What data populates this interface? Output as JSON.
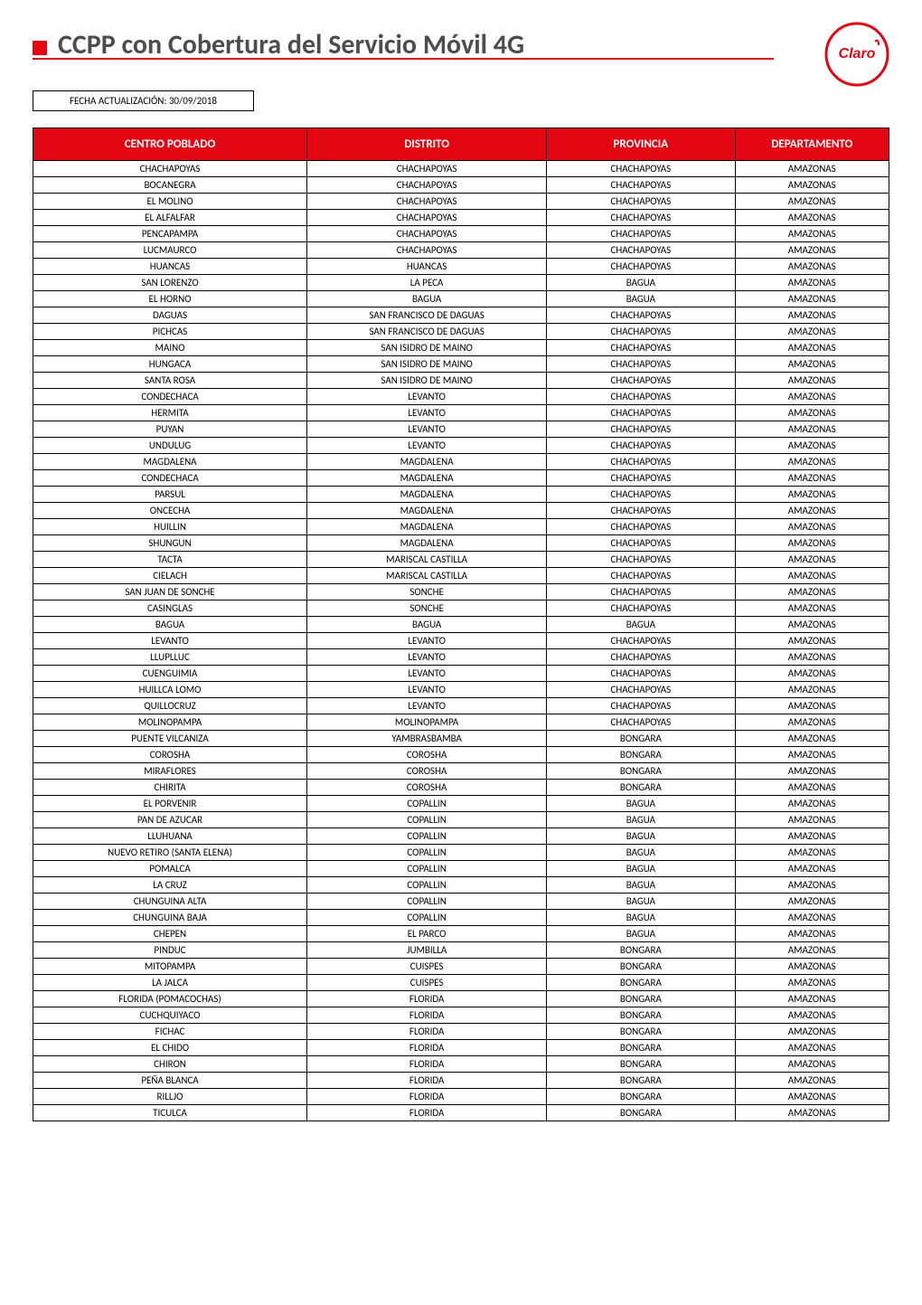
{
  "title": "CCPP con Cobertura del Servicio Móvil 4G",
  "fecha": "FECHA ACTUALIZACIÓN: 30/09/2018",
  "logo": {
    "bg": "#ffffff",
    "border": "#e30613",
    "text": "Claro",
    "text_color": "#e30613"
  },
  "table": {
    "columns": [
      "CENTRO POBLADO",
      "DISTRITO",
      "PROVINCIA",
      "DEPARTAMENTO"
    ],
    "rows": [
      [
        "CHACHAPOYAS",
        "CHACHAPOYAS",
        "CHACHAPOYAS",
        "AMAZONAS"
      ],
      [
        "BOCANEGRA",
        "CHACHAPOYAS",
        "CHACHAPOYAS",
        "AMAZONAS"
      ],
      [
        "EL MOLINO",
        "CHACHAPOYAS",
        "CHACHAPOYAS",
        "AMAZONAS"
      ],
      [
        "EL ALFALFAR",
        "CHACHAPOYAS",
        "CHACHAPOYAS",
        "AMAZONAS"
      ],
      [
        "PENCAPAMPA",
        "CHACHAPOYAS",
        "CHACHAPOYAS",
        "AMAZONAS"
      ],
      [
        "LUCMAURCO",
        "CHACHAPOYAS",
        "CHACHAPOYAS",
        "AMAZONAS"
      ],
      [
        "HUANCAS",
        "HUANCAS",
        "CHACHAPOYAS",
        "AMAZONAS"
      ],
      [
        "SAN LORENZO",
        "LA PECA",
        "BAGUA",
        "AMAZONAS"
      ],
      [
        "EL HORNO",
        "BAGUA",
        "BAGUA",
        "AMAZONAS"
      ],
      [
        "DAGUAS",
        "SAN FRANCISCO DE DAGUAS",
        "CHACHAPOYAS",
        "AMAZONAS"
      ],
      [
        "PICHCAS",
        "SAN FRANCISCO DE DAGUAS",
        "CHACHAPOYAS",
        "AMAZONAS"
      ],
      [
        "MAINO",
        "SAN ISIDRO DE MAINO",
        "CHACHAPOYAS",
        "AMAZONAS"
      ],
      [
        "HUNGACA",
        "SAN ISIDRO DE MAINO",
        "CHACHAPOYAS",
        "AMAZONAS"
      ],
      [
        "SANTA ROSA",
        "SAN ISIDRO DE MAINO",
        "CHACHAPOYAS",
        "AMAZONAS"
      ],
      [
        "CONDECHACA",
        "LEVANTO",
        "CHACHAPOYAS",
        "AMAZONAS"
      ],
      [
        "HERMITA",
        "LEVANTO",
        "CHACHAPOYAS",
        "AMAZONAS"
      ],
      [
        "PUYAN",
        "LEVANTO",
        "CHACHAPOYAS",
        "AMAZONAS"
      ],
      [
        "UNDULUG",
        "LEVANTO",
        "CHACHAPOYAS",
        "AMAZONAS"
      ],
      [
        "MAGDALENA",
        "MAGDALENA",
        "CHACHAPOYAS",
        "AMAZONAS"
      ],
      [
        "CONDECHACA",
        "MAGDALENA",
        "CHACHAPOYAS",
        "AMAZONAS"
      ],
      [
        "PARSUL",
        "MAGDALENA",
        "CHACHAPOYAS",
        "AMAZONAS"
      ],
      [
        "ONCECHA",
        "MAGDALENA",
        "CHACHAPOYAS",
        "AMAZONAS"
      ],
      [
        "HUILLIN",
        "MAGDALENA",
        "CHACHAPOYAS",
        "AMAZONAS"
      ],
      [
        "SHUNGUN",
        "MAGDALENA",
        "CHACHAPOYAS",
        "AMAZONAS"
      ],
      [
        "TACTA",
        "MARISCAL CASTILLA",
        "CHACHAPOYAS",
        "AMAZONAS"
      ],
      [
        "CIELACH",
        "MARISCAL CASTILLA",
        "CHACHAPOYAS",
        "AMAZONAS"
      ],
      [
        "SAN JUAN DE SONCHE",
        "SONCHE",
        "CHACHAPOYAS",
        "AMAZONAS"
      ],
      [
        "CASINGLAS",
        "SONCHE",
        "CHACHAPOYAS",
        "AMAZONAS"
      ],
      [
        "BAGUA",
        "BAGUA",
        "BAGUA",
        "AMAZONAS"
      ],
      [
        "LEVANTO",
        "LEVANTO",
        "CHACHAPOYAS",
        "AMAZONAS"
      ],
      [
        "LLUPLLUC",
        "LEVANTO",
        "CHACHAPOYAS",
        "AMAZONAS"
      ],
      [
        "CUENGUIMIA",
        "LEVANTO",
        "CHACHAPOYAS",
        "AMAZONAS"
      ],
      [
        "HUILLCA LOMO",
        "LEVANTO",
        "CHACHAPOYAS",
        "AMAZONAS"
      ],
      [
        "QUILLOCRUZ",
        "LEVANTO",
        "CHACHAPOYAS",
        "AMAZONAS"
      ],
      [
        "MOLINOPAMPA",
        "MOLINOPAMPA",
        "CHACHAPOYAS",
        "AMAZONAS"
      ],
      [
        "PUENTE VILCANIZA",
        "YAMBRASBAMBA",
        "BONGARA",
        "AMAZONAS"
      ],
      [
        "COROSHA",
        "COROSHA",
        "BONGARA",
        "AMAZONAS"
      ],
      [
        "MIRAFLORES",
        "COROSHA",
        "BONGARA",
        "AMAZONAS"
      ],
      [
        "CHIRITA",
        "COROSHA",
        "BONGARA",
        "AMAZONAS"
      ],
      [
        "EL PORVENIR",
        "COPALLIN",
        "BAGUA",
        "AMAZONAS"
      ],
      [
        "PAN DE AZUCAR",
        "COPALLIN",
        "BAGUA",
        "AMAZONAS"
      ],
      [
        "LLUHUANA",
        "COPALLIN",
        "BAGUA",
        "AMAZONAS"
      ],
      [
        "NUEVO RETIRO (SANTA ELENA)",
        "COPALLIN",
        "BAGUA",
        "AMAZONAS"
      ],
      [
        "POMALCA",
        "COPALLIN",
        "BAGUA",
        "AMAZONAS"
      ],
      [
        "LA CRUZ",
        "COPALLIN",
        "BAGUA",
        "AMAZONAS"
      ],
      [
        "CHUNGUINA ALTA",
        "COPALLIN",
        "BAGUA",
        "AMAZONAS"
      ],
      [
        "CHUNGUINA BAJA",
        "COPALLIN",
        "BAGUA",
        "AMAZONAS"
      ],
      [
        "CHEPEN",
        "EL PARCO",
        "BAGUA",
        "AMAZONAS"
      ],
      [
        "PINDUC",
        "JUMBILLA",
        "BONGARA",
        "AMAZONAS"
      ],
      [
        "MITOPAMPA",
        "CUISPES",
        "BONGARA",
        "AMAZONAS"
      ],
      [
        "LA JALCA",
        "CUISPES",
        "BONGARA",
        "AMAZONAS"
      ],
      [
        "FLORIDA (POMACOCHAS)",
        "FLORIDA",
        "BONGARA",
        "AMAZONAS"
      ],
      [
        "CUCHQUIYACO",
        "FLORIDA",
        "BONGARA",
        "AMAZONAS"
      ],
      [
        "FICHAC",
        "FLORIDA",
        "BONGARA",
        "AMAZONAS"
      ],
      [
        "EL CHIDO",
        "FLORIDA",
        "BONGARA",
        "AMAZONAS"
      ],
      [
        "CHIRON",
        "FLORIDA",
        "BONGARA",
        "AMAZONAS"
      ],
      [
        "PEÑA BLANCA",
        "FLORIDA",
        "BONGARA",
        "AMAZONAS"
      ],
      [
        "RILLJO",
        "FLORIDA",
        "BONGARA",
        "AMAZONAS"
      ],
      [
        "TICULCA",
        "FLORIDA",
        "BONGARA",
        "AMAZONAS"
      ]
    ]
  },
  "styling": {
    "header_bg": "#e30613",
    "header_fg": "#ffffff",
    "border_color": "#000000",
    "title_color": "#4d4d4d",
    "title_fontsize_pt": 22,
    "body_fontsize_pt": 8,
    "header_fontsize_pt": 10,
    "col_widths_pct": [
      32,
      28,
      22,
      18
    ]
  }
}
